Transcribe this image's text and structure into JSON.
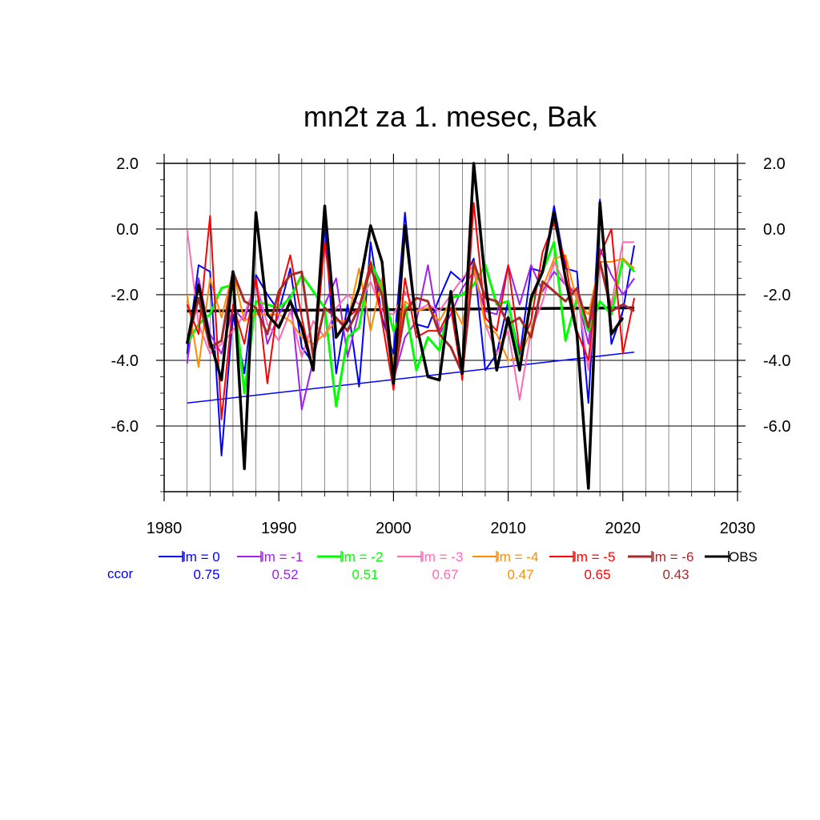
{
  "chart_data": {
    "type": "line",
    "title": "mn2t za 1. mesec, Bak",
    "xlabel": "",
    "ylabel": "",
    "xlim": [
      1980,
      2030
    ],
    "ylim": [
      -8,
      2
    ],
    "xticks": [
      1980,
      1990,
      2000,
      2010,
      2020,
      2030
    ],
    "xtick_labels": [
      "1980",
      "1990",
      "2000",
      "2010",
      "2020",
      "2030"
    ],
    "yticks": [
      2,
      0,
      -2,
      -4,
      -6
    ],
    "ytick_labels": [
      "2.0",
      "0.0",
      "-2.0",
      "-4.0",
      "-6.0"
    ],
    "grid": true,
    "legend_position": "bottom",
    "ccor_label": "ccor",
    "ccor_color": "#0000ff",
    "x": [
      1982,
      1983,
      1984,
      1985,
      1986,
      1987,
      1988,
      1989,
      1990,
      1991,
      1992,
      1993,
      1994,
      1995,
      1996,
      1997,
      1998,
      1999,
      2000,
      2001,
      2002,
      2003,
      2004,
      2005,
      2006,
      2007,
      2008,
      2009,
      2010,
      2011,
      2012,
      2013,
      2014,
      2015,
      2016,
      2017,
      2018,
      2019,
      2020,
      2021
    ],
    "series": [
      {
        "name": "lm = 0",
        "color": "#0000ff",
        "ccor": "0.75",
        "width": 2,
        "values": [
          -3.8,
          -1.1,
          -1.3,
          -6.9,
          -2.6,
          -4.4,
          -1.4,
          -2.0,
          -2.5,
          -1.2,
          -3.6,
          -4.1,
          0.1,
          -4.4,
          -2.3,
          -4.8,
          -0.4,
          -2.7,
          -3.8,
          0.5,
          -2.9,
          -3.0,
          -2.1,
          -1.3,
          -1.6,
          -0.9,
          -4.3,
          -3.8,
          -2.2,
          -3.9,
          -1.2,
          -1.3,
          0.7,
          -1.2,
          -1.3,
          -5.3,
          0.9,
          -3.5,
          -2.5,
          -0.5
        ]
      },
      {
        "name": "lm = -1",
        "color": "#a020f0",
        "ccor": "0.52",
        "width": 2,
        "values": [
          -4.1,
          -1.5,
          -3.2,
          -3.8,
          -2.4,
          -2.8,
          -1.5,
          -3.5,
          -2.6,
          -2.0,
          -5.5,
          -4.0,
          -2.3,
          -1.5,
          -3.9,
          -2.5,
          -1.0,
          -1.7,
          -4.6,
          -3.3,
          -2.8,
          -1.1,
          -3.2,
          -2.6,
          -1.8,
          -1.3,
          -2.5,
          -2.6,
          -1.1,
          -2.3,
          -1.1,
          -1.9,
          -1.3,
          -1.7,
          -2.0,
          -3.5,
          -0.6,
          -1.4,
          -2.0,
          -1.5
        ]
      },
      {
        "name": "lm = -2",
        "color": "#00ff00",
        "ccor": "0.51",
        "width": 3,
        "values": [
          -3.5,
          -2.9,
          -2.6,
          -1.8,
          -1.7,
          -5.0,
          -2.2,
          -2.3,
          -2.4,
          -2.1,
          -1.4,
          -1.9,
          -2.4,
          -5.4,
          -3.3,
          -3.0,
          -1.0,
          -1.8,
          -3.1,
          -2.3,
          -4.3,
          -3.3,
          -3.7,
          -2.1,
          -2.0,
          -1.7,
          -1.1,
          -2.3,
          -2.2,
          -4.1,
          -2.2,
          -1.3,
          -0.4,
          -3.4,
          -2.1,
          -3.1,
          -2.2,
          -2.6,
          -0.9,
          -1.3
        ]
      },
      {
        "name": "lm = -3",
        "color": "#ff69b4",
        "ccor": "0.67",
        "width": 2,
        "values": [
          0.0,
          -2.9,
          -3.8,
          -3.5,
          -3.1,
          -2.6,
          -1.6,
          -2.9,
          -3.4,
          -2.5,
          -3.9,
          -2.8,
          -3.3,
          -2.4,
          -2.0,
          -2.3,
          -1.6,
          -2.5,
          -2.6,
          -1.9,
          -2.5,
          -2.3,
          -2.5,
          -2.0,
          -1.5,
          -1.1,
          -2.9,
          -3.8,
          -3.1,
          -5.2,
          -3.1,
          -2.2,
          -1.0,
          -1.7,
          -1.9,
          -4.3,
          -1.1,
          -2.3,
          -0.4,
          -0.4
        ]
      },
      {
        "name": "lm = -4",
        "color": "#ff8c00",
        "ccor": "0.47",
        "width": 2,
        "values": [
          -2.0,
          -4.2,
          -1.5,
          -2.7,
          -1.3,
          -2.8,
          -2.6,
          -2.6,
          -2.6,
          -2.8,
          -3.3,
          -3.5,
          -3.2,
          -2.8,
          -2.8,
          -1.2,
          -3.1,
          -1.5,
          -4.2,
          -2.2,
          -2.5,
          -2.4,
          -2.8,
          -2.2,
          -2.9,
          -1.2,
          -2.9,
          -3.2,
          -4.0,
          -3.9,
          -3.1,
          -1.8,
          -0.9,
          -0.8,
          -2.2,
          -2.6,
          -1.0,
          -1.0,
          -0.9,
          -1.2
        ]
      },
      {
        "name": "lm = -5",
        "color": "#ff0000",
        "ccor": "0.65",
        "width": 2,
        "values": [
          -2.3,
          -3.2,
          0.4,
          -5.8,
          -2.3,
          -3.5,
          -1.5,
          -4.7,
          -2.1,
          -0.8,
          -2.7,
          -4.3,
          -0.4,
          -3.3,
          -2.7,
          -2.4,
          -1.0,
          -2.8,
          -4.9,
          -1.5,
          -3.3,
          -3.1,
          -3.1,
          -2.4,
          -4.6,
          0.8,
          -2.7,
          -3.1,
          -1.1,
          -3.7,
          -2.8,
          -0.7,
          0.2,
          -1.0,
          -3.1,
          -4.0,
          -0.8,
          0.0,
          -3.8,
          -2.1
        ]
      },
      {
        "name": "lm = -6",
        "color": "#a52a2a",
        "ccor": "0.43",
        "width": 3,
        "values": [
          -3.5,
          -2.1,
          -3.6,
          -3.4,
          -1.3,
          -2.2,
          -2.4,
          -3.2,
          -1.9,
          -1.4,
          -1.3,
          -3.9,
          -2.4,
          -2.7,
          -3.1,
          -2.4,
          -1.2,
          -2.0,
          -4.6,
          -2.5,
          -2.1,
          -2.2,
          -3.2,
          -3.6,
          -4.4,
          -1.0,
          -2.1,
          -2.2,
          -2.9,
          -2.7,
          -3.3,
          -1.6,
          -1.9,
          -2.2,
          -1.8,
          -3.0,
          -1.0,
          -2.5,
          -2.3,
          -2.5
        ]
      },
      {
        "name": "OBS",
        "color": "#000000",
        "ccor": "",
        "width": 3.5,
        "values": [
          -3.5,
          -1.7,
          -3.4,
          -4.6,
          -1.3,
          -7.3,
          0.5,
          -2.6,
          -3.0,
          -2.2,
          -3.0,
          -4.3,
          0.7,
          -3.3,
          -2.8,
          -1.8,
          0.1,
          -1.0,
          -4.7,
          0.1,
          -2.9,
          -4.5,
          -4.6,
          -1.9,
          -4.4,
          2.0,
          -1.6,
          -4.3,
          -2.7,
          -4.3,
          -2.1,
          -1.3,
          0.5,
          -1.5,
          -3.2,
          -7.9,
          0.8,
          -3.2,
          -2.7,
          null
        ]
      }
    ],
    "trend_lines": [
      {
        "name": "lm = 0 trend",
        "color": "#0000ff",
        "width": 1.5,
        "x": [
          1982,
          2021
        ],
        "y": [
          -5.3,
          -3.75
        ]
      },
      {
        "name": "OBS trend",
        "color": "#000000",
        "width": 3.5,
        "x": [
          1982,
          2021
        ],
        "y": [
          -2.5,
          -2.4
        ]
      }
    ]
  }
}
